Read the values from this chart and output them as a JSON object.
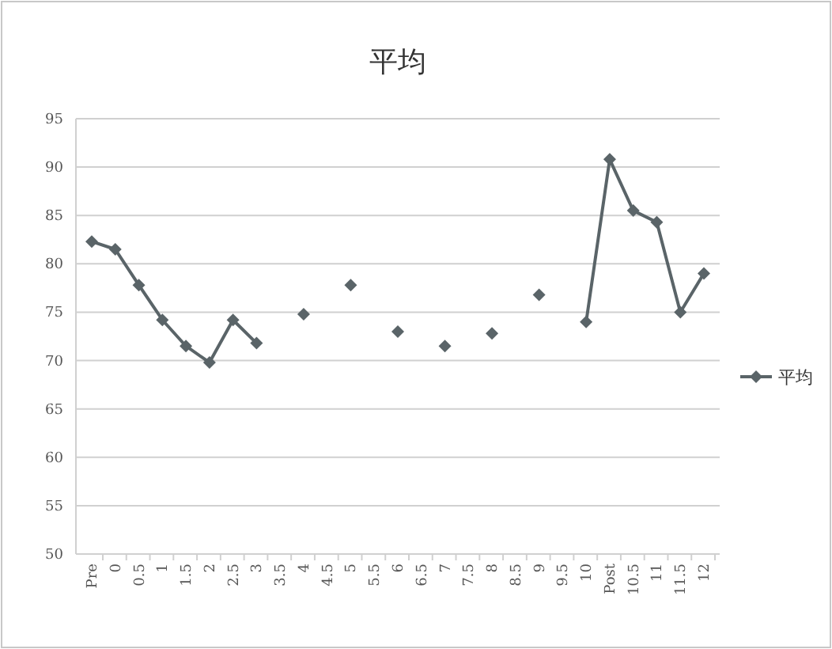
{
  "chart_data": {
    "type": "line",
    "title": "平均",
    "categories": [
      "Pre",
      "0",
      "0.5",
      "1",
      "1.5",
      "2",
      "2.5",
      "3",
      "3.5",
      "4",
      "4.5",
      "5",
      "5.5",
      "6",
      "6.5",
      "7",
      "7.5",
      "8",
      "8.5",
      "9",
      "9.5",
      "10",
      "Post",
      "10.5",
      "11",
      "11.5",
      "12"
    ],
    "series": [
      {
        "name": "平均",
        "color": "#5a6468",
        "values": [
          82.3,
          81.5,
          77.8,
          74.2,
          71.5,
          69.8,
          74.2,
          71.8,
          null,
          74.8,
          null,
          77.8,
          null,
          73,
          null,
          71.5,
          null,
          72.8,
          null,
          76.8,
          null,
          74,
          90.8,
          85.5,
          84.3,
          75,
          79
        ]
      }
    ],
    "ylim": [
      50,
      95
    ],
    "yticks": [
      50,
      55,
      60,
      65,
      70,
      75,
      80,
      85,
      90,
      95
    ],
    "grid": "y",
    "legend": "right",
    "marker": "diamond",
    "line_style": "solid"
  }
}
